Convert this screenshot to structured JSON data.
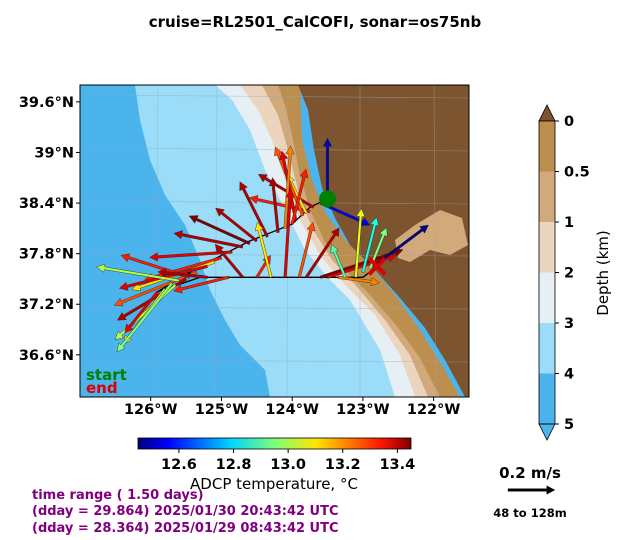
{
  "title": "cruise=RL2501_CalCOFI,   sonar=os75nb",
  "chart_data": {
    "type": "map-vector",
    "lon_range": [
      -127.0,
      -121.5
    ],
    "lat_range": [
      36.1,
      39.8
    ],
    "lat_ticks": [
      "39.6°N",
      "39°N",
      "38.4°N",
      "37.8°N",
      "37.2°N",
      "36.6°N"
    ],
    "lat_tick_values": [
      39.6,
      39.0,
      38.4,
      37.8,
      37.2,
      36.6
    ],
    "lon_ticks": [
      "126°W",
      "125°W",
      "124°W",
      "123°W",
      "122°W"
    ],
    "lon_tick_values": [
      -126,
      -125,
      -124,
      -123,
      -122
    ],
    "depth_colorbar": {
      "label": "Depth (km)",
      "ticks": [
        "0",
        "0.5",
        "1",
        "2",
        "3",
        "4",
        "5"
      ],
      "colors": [
        "#bc8f4f",
        "#d2a97a",
        "#ecd5be",
        "#e6f0f4",
        "#9bdcf8",
        "#4cb4ec"
      ],
      "extend_top": "#7c5530",
      "extend_bottom": "#4cb4ec"
    },
    "temperature_colorbar": {
      "label": "ADCP temperature, °C",
      "ticks": [
        "12.6",
        "12.8",
        "13.0",
        "13.2",
        "13.4"
      ],
      "tick_values": [
        12.6,
        12.8,
        13.0,
        13.2,
        13.4
      ],
      "range": [
        12.45,
        13.45
      ]
    },
    "legend": {
      "start": "start",
      "end": "end",
      "start_color": "#008000",
      "end_color": "#dd0000"
    },
    "time_range": "time range ( 1.50 days)",
    "dday_end": "(dday = 29.864) 2025/01/30 20:43:42 UTC",
    "dday_start": "(dday = 28.364) 2025/01/29 08:43:42 UTC",
    "scale": {
      "label": "0.2 m/s",
      "depth_range": "48 to 128m",
      "speed": 0.2
    },
    "start_point": {
      "lon": -123.5,
      "lat": 38.45
    },
    "end_point": {
      "lon": -122.8,
      "lat": 37.65
    },
    "track": [
      {
        "lon": -122.8,
        "lat": 37.65
      },
      {
        "lon": -123.0,
        "lat": 37.52
      },
      {
        "lon": -123.3,
        "lat": 37.52
      },
      {
        "lon": -124.0,
        "lat": 37.52
      },
      {
        "lon": -124.8,
        "lat": 37.52
      },
      {
        "lon": -125.3,
        "lat": 37.52
      },
      {
        "lon": -125.9,
        "lat": 37.35
      },
      {
        "lon": -125.3,
        "lat": 37.65
      },
      {
        "lon": -124.6,
        "lat": 37.95
      },
      {
        "lon": -124.0,
        "lat": 38.15
      },
      {
        "lon": -123.75,
        "lat": 38.35
      },
      {
        "lon": -123.5,
        "lat": 38.45
      }
    ],
    "vectors": [
      {
        "lon": -123.5,
        "lat": 38.45,
        "u": 0.0,
        "v": 0.22,
        "t": 12.5
      },
      {
        "lon": -123.6,
        "lat": 38.4,
        "u": 0.18,
        "v": -0.08,
        "t": 12.55
      },
      {
        "lon": -123.7,
        "lat": 38.35,
        "u": -0.2,
        "v": 0.12,
        "t": 13.4
      },
      {
        "lon": -123.75,
        "lat": 38.3,
        "u": -0.22,
        "v": 0.05,
        "t": 13.3
      },
      {
        "lon": -123.8,
        "lat": 38.28,
        "u": -0.07,
        "v": 0.14,
        "t": 13.1
      },
      {
        "lon": -123.85,
        "lat": 38.25,
        "u": -0.1,
        "v": 0.25,
        "t": 13.25
      },
      {
        "lon": -123.95,
        "lat": 38.2,
        "u": -0.05,
        "v": 0.25,
        "t": 13.35
      },
      {
        "lon": -124.0,
        "lat": 38.15,
        "u": 0.05,
        "v": 0.2,
        "t": 13.3
      },
      {
        "lon": -124.1,
        "lat": 38.1,
        "u": 0.02,
        "v": 0.3,
        "t": 13.2
      },
      {
        "lon": -124.2,
        "lat": 38.05,
        "u": -0.02,
        "v": 0.2,
        "t": 13.4
      },
      {
        "lon": -124.35,
        "lat": 38.0,
        "u": -0.1,
        "v": 0.2,
        "t": 13.4
      },
      {
        "lon": -124.5,
        "lat": 37.95,
        "u": -0.15,
        "v": 0.12,
        "t": 13.4
      },
      {
        "lon": -124.6,
        "lat": 37.92,
        "u": -0.22,
        "v": 0.1,
        "t": 13.45
      },
      {
        "lon": -124.7,
        "lat": 37.88,
        "u": -0.25,
        "v": 0.05,
        "t": 13.4
      },
      {
        "lon": -124.85,
        "lat": 37.82,
        "u": -0.3,
        "v": -0.02,
        "t": 13.35
      },
      {
        "lon": -125.0,
        "lat": 37.75,
        "u": -0.28,
        "v": -0.08,
        "t": 13.3
      },
      {
        "lon": -125.1,
        "lat": 37.7,
        "u": -0.3,
        "v": -0.1,
        "t": 13.1
      },
      {
        "lon": -125.2,
        "lat": 37.65,
        "u": -0.32,
        "v": -0.08,
        "t": 13.35
      },
      {
        "lon": -125.35,
        "lat": 37.58,
        "u": -0.3,
        "v": -0.12,
        "t": 13.25
      },
      {
        "lon": -125.5,
        "lat": 37.5,
        "u": -0.25,
        "v": -0.15,
        "t": 13.4
      },
      {
        "lon": -125.65,
        "lat": 37.43,
        "u": -0.22,
        "v": -0.2,
        "t": 13.0
      },
      {
        "lon": -125.8,
        "lat": 37.38,
        "u": -0.15,
        "v": -0.2,
        "t": 13.1
      },
      {
        "lon": -125.9,
        "lat": 37.35,
        "u": -0.12,
        "v": -0.15,
        "t": 13.35
      },
      {
        "lon": -125.7,
        "lat": 37.45,
        "u": -0.2,
        "v": -0.25,
        "t": 12.95
      },
      {
        "lon": -125.6,
        "lat": 37.48,
        "u": -0.3,
        "v": 0.05,
        "t": 13.0
      },
      {
        "lon": -125.45,
        "lat": 37.52,
        "u": -0.25,
        "v": 0.08,
        "t": 13.3
      },
      {
        "lon": -125.2,
        "lat": 37.52,
        "u": -0.18,
        "v": 0.02,
        "t": 13.4
      },
      {
        "lon": -124.9,
        "lat": 37.52,
        "u": -0.2,
        "v": -0.05,
        "t": 13.3
      },
      {
        "lon": -124.7,
        "lat": 37.52,
        "u": -0.1,
        "v": 0.12,
        "t": 13.4
      },
      {
        "lon": -124.5,
        "lat": 37.52,
        "u": 0.05,
        "v": 0.08,
        "t": 13.3
      },
      {
        "lon": -124.3,
        "lat": 37.52,
        "u": -0.05,
        "v": 0.2,
        "t": 13.1
      },
      {
        "lon": -124.1,
        "lat": 37.52,
        "u": 0.02,
        "v": 0.32,
        "t": 13.35
      },
      {
        "lon": -123.9,
        "lat": 37.52,
        "u": 0.05,
        "v": 0.2,
        "t": 13.25
      },
      {
        "lon": -123.8,
        "lat": 37.52,
        "u": 0.12,
        "v": 0.18,
        "t": 13.4
      },
      {
        "lon": -123.6,
        "lat": 37.52,
        "u": 0.3,
        "v": 0.1,
        "t": 13.45
      },
      {
        "lon": -123.5,
        "lat": 37.52,
        "u": 0.25,
        "v": 0.08,
        "t": 13.35
      },
      {
        "lon": -123.35,
        "lat": 37.52,
        "u": 0.15,
        "v": -0.02,
        "t": 13.2
      },
      {
        "lon": -123.25,
        "lat": 37.52,
        "u": -0.05,
        "v": 0.12,
        "t": 12.9
      },
      {
        "lon": -123.1,
        "lat": 37.52,
        "u": 0.02,
        "v": 0.25,
        "t": 13.05
      },
      {
        "lon": -123.0,
        "lat": 37.58,
        "u": 0.05,
        "v": 0.2,
        "t": 12.85
      },
      {
        "lon": -122.9,
        "lat": 37.62,
        "u": 0.06,
        "v": 0.15,
        "t": 12.95
      },
      {
        "lon": -122.85,
        "lat": 37.65,
        "u": 0.2,
        "v": 0.15,
        "t": 12.45
      }
    ]
  }
}
